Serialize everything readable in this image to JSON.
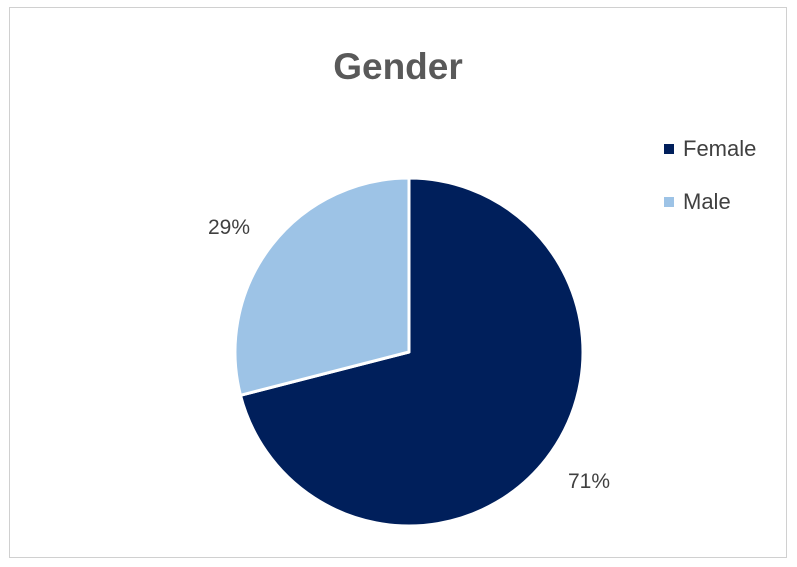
{
  "chart_data": {
    "type": "pie",
    "title": "Gender",
    "categories": [
      "Female",
      "Male"
    ],
    "values": [
      71,
      29
    ],
    "data_labels": [
      "71%",
      "29%"
    ],
    "colors": [
      "#001F5B",
      "#9DC3E6"
    ],
    "legend_placement": "right"
  }
}
